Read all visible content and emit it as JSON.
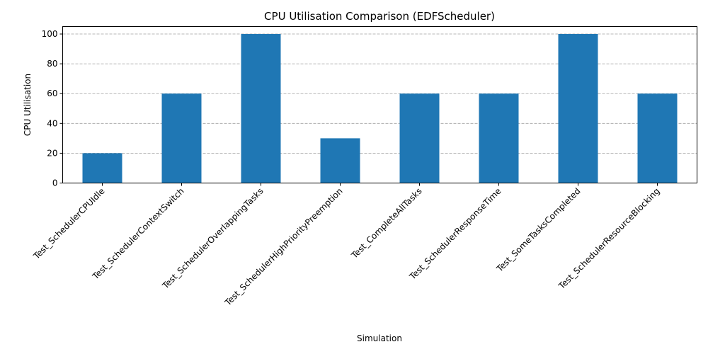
{
  "chart_data": {
    "type": "bar",
    "title": "CPU Utilisation Comparison (EDFScheduler)",
    "xlabel": "Simulation",
    "ylabel": "CPU Utilisation",
    "categories": [
      "Test_SchedulerCPUIdle",
      "Test_SchedulerContextSwitch",
      "Test_SchedulerOverlappingTasks",
      "Test_SchedulerHighPriorityPreemption",
      "Test_CompleteAllTasks",
      "Test_SchedulerResponseTime",
      "Test_SomeTasksCompleted",
      "Test_SchedulerResourceBlocking"
    ],
    "values": [
      20,
      60,
      100,
      30,
      60,
      60,
      100,
      60
    ],
    "ylim": [
      0,
      105
    ],
    "yticks": [
      0,
      20,
      40,
      60,
      80,
      100
    ],
    "grid": "y-dashed",
    "legend": "none",
    "bar_color": "#1f77b4",
    "xtick_rotation": -45
  }
}
